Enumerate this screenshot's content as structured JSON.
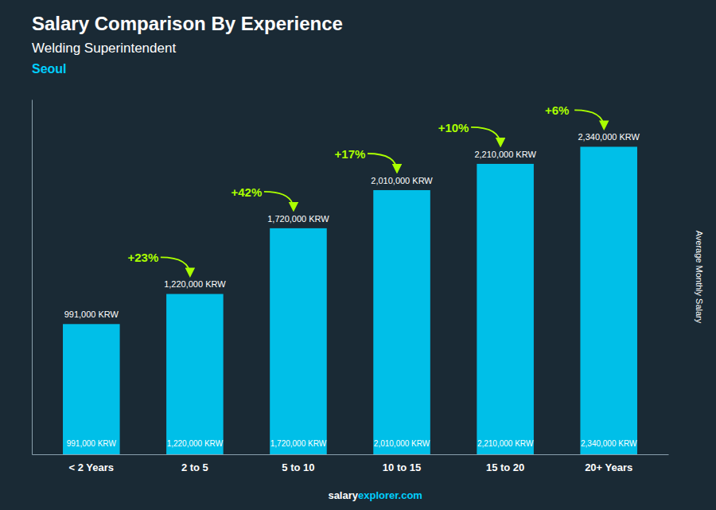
{
  "chart_data": {
    "type": "bar",
    "title": "Salary Comparison By Experience",
    "subtitle": [
      "Welding Superintendent",
      "Seoul"
    ],
    "ylabel": "Average Monthly Salary",
    "categories": [
      "< 2 Years",
      "2 to 5",
      "5 to 10",
      "10 to 15",
      "15 to 20",
      "20+ Years"
    ],
    "values": [
      991000,
      1220000,
      1720000,
      2010000,
      2210000,
      2340000
    ],
    "value_labels": [
      "991,000 KRW",
      "1,220,000 KRW",
      "1,720,000 KRW",
      "2,010,000 KRW",
      "2,210,000 KRW",
      "2,340,000 KRW"
    ],
    "data_labels": true,
    "color": "#00bfe8",
    "ylim": [
      0,
      2700000
    ],
    "tick_labels": "x",
    "annotations": [
      {
        "text": "+23%",
        "color": "#aaff00"
      },
      {
        "text": "+42%",
        "color": "#aaff00"
      },
      {
        "text": "+17%",
        "color": "#aaff00"
      },
      {
        "text": "+10%",
        "color": "#aaff00"
      },
      {
        "text": "+6%",
        "color": "#aaff00"
      }
    ],
    "footer": [
      "salary",
      "explorer.com"
    ]
  }
}
